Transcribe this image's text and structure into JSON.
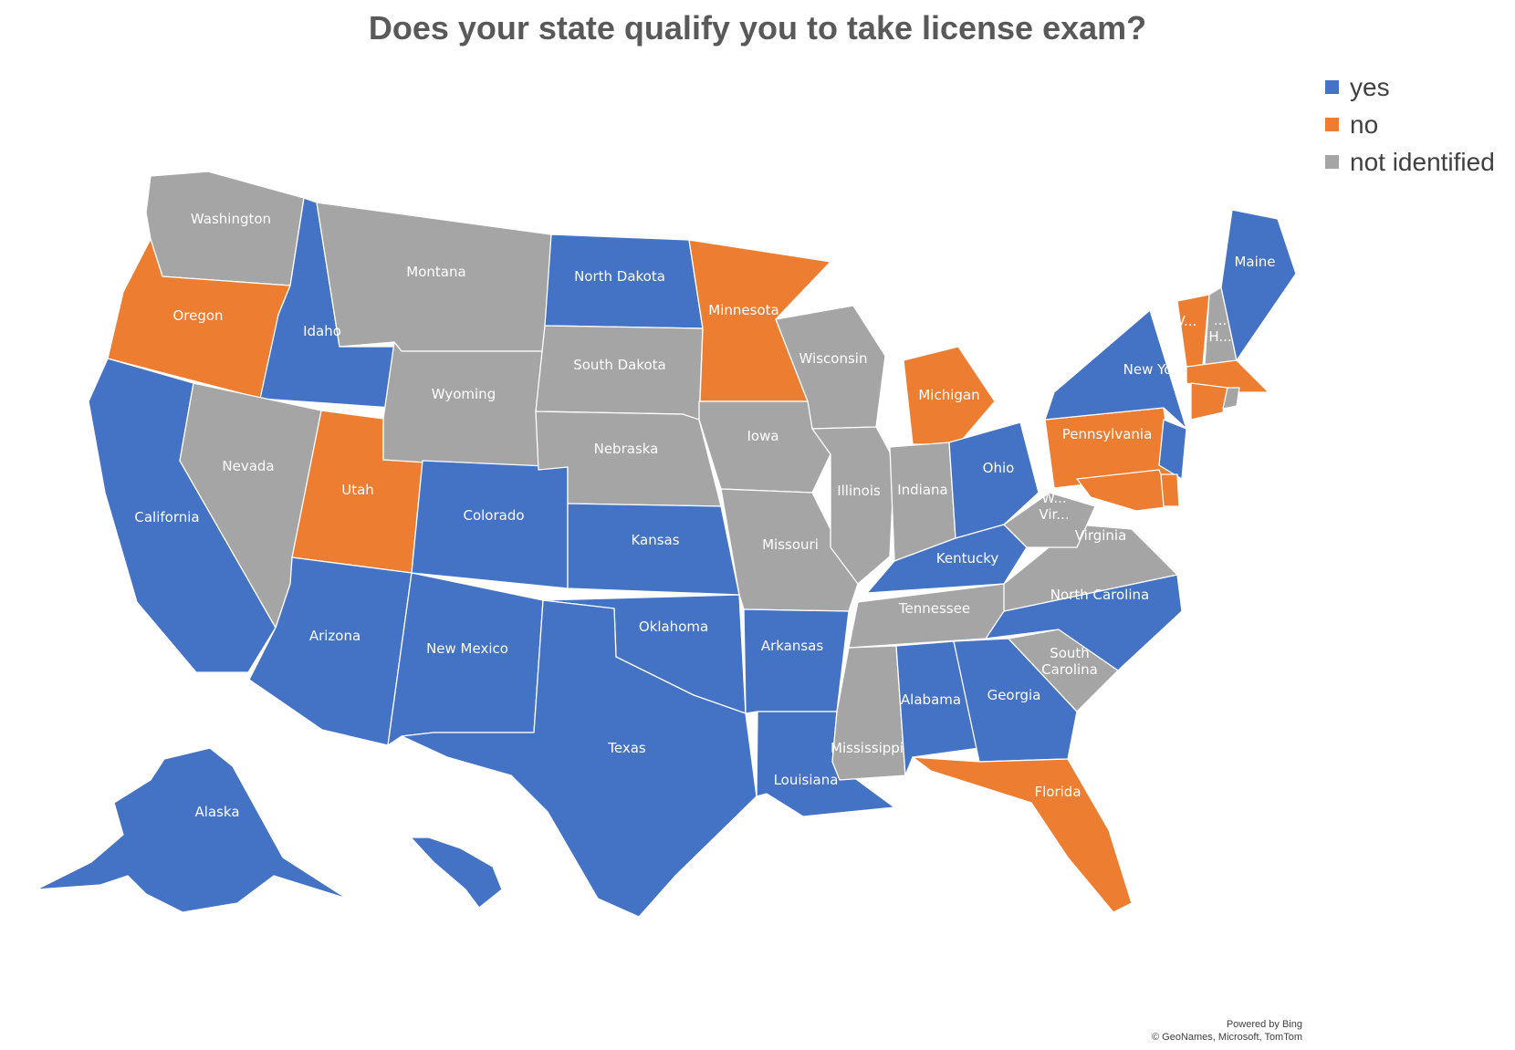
{
  "title": "Does your state qualify you to take license exam?",
  "legend": [
    {
      "label": "yes",
      "color": "#4472C4"
    },
    {
      "label": "no",
      "color": "#ED7D31"
    },
    {
      "label": "not identified",
      "color": "#A5A5A5"
    }
  ],
  "colors": {
    "yes": "#4472C4",
    "no": "#ED7D31",
    "not identified": "#A5A5A5"
  },
  "credit": {
    "line1": "Powered by Bing",
    "line2": "© GeoNames, Microsoft, TomTom"
  },
  "chart_data": {
    "type": "choropleth",
    "region": "United States",
    "title": "Does your state qualify you to take license exam?",
    "categories": [
      "yes",
      "no",
      "not identified"
    ],
    "legend_position": "top-right",
    "states": [
      {
        "name": "Washington",
        "label": "Washington",
        "category": "not identified"
      },
      {
        "name": "Oregon",
        "label": "Oregon",
        "category": "no"
      },
      {
        "name": "California",
        "label": "California",
        "category": "yes"
      },
      {
        "name": "Idaho",
        "label": "Idaho",
        "category": "yes"
      },
      {
        "name": "Nevada",
        "label": "Nevada",
        "category": "not identified"
      },
      {
        "name": "Utah",
        "label": "Utah",
        "category": "no"
      },
      {
        "name": "Arizona",
        "label": "Arizona",
        "category": "yes"
      },
      {
        "name": "Montana",
        "label": "Montana",
        "category": "not identified"
      },
      {
        "name": "Wyoming",
        "label": "Wyoming",
        "category": "not identified"
      },
      {
        "name": "Colorado",
        "label": "Colorado",
        "category": "yes"
      },
      {
        "name": "New Mexico",
        "label": "New Mexico",
        "category": "yes"
      },
      {
        "name": "North Dakota",
        "label": "North Dakota",
        "category": "yes"
      },
      {
        "name": "South Dakota",
        "label": "South Dakota",
        "category": "not identified"
      },
      {
        "name": "Nebraska",
        "label": "Nebraska",
        "category": "not identified"
      },
      {
        "name": "Kansas",
        "label": "Kansas",
        "category": "yes"
      },
      {
        "name": "Oklahoma",
        "label": "Oklahoma",
        "category": "yes"
      },
      {
        "name": "Texas",
        "label": "Texas",
        "category": "yes"
      },
      {
        "name": "Minnesota",
        "label": "Minnesota",
        "category": "no"
      },
      {
        "name": "Iowa",
        "label": "Iowa",
        "category": "not identified"
      },
      {
        "name": "Missouri",
        "label": "Missouri",
        "category": "not identified"
      },
      {
        "name": "Arkansas",
        "label": "Arkansas",
        "category": "yes"
      },
      {
        "name": "Louisiana",
        "label": "Louisiana",
        "category": "yes"
      },
      {
        "name": "Wisconsin",
        "label": "Wisconsin",
        "category": "not identified"
      },
      {
        "name": "Illinois",
        "label": "Illinois",
        "category": "not identified"
      },
      {
        "name": "Michigan",
        "label": "Michigan",
        "category": "no"
      },
      {
        "name": "Indiana",
        "label": "Indiana",
        "category": "not identified"
      },
      {
        "name": "Ohio",
        "label": "Ohio",
        "category": "yes"
      },
      {
        "name": "Kentucky",
        "label": "Kentucky",
        "category": "yes"
      },
      {
        "name": "Tennessee",
        "label": "Tennessee",
        "category": "not identified"
      },
      {
        "name": "Mississippi",
        "label": "Mississippi",
        "category": "not identified"
      },
      {
        "name": "Alabama",
        "label": "Alabama",
        "category": "yes"
      },
      {
        "name": "Georgia",
        "label": "Georgia",
        "category": "yes"
      },
      {
        "name": "Florida",
        "label": "Florida",
        "category": "no"
      },
      {
        "name": "South Carolina",
        "label": "South Carolina",
        "category": "not identified"
      },
      {
        "name": "North Carolina",
        "label": "North Carolina",
        "category": "yes"
      },
      {
        "name": "Virginia",
        "label": "Virginia",
        "category": "not identified"
      },
      {
        "name": "West Virginia",
        "label": "W... Vir...",
        "category": "not identified"
      },
      {
        "name": "Pennsylvania",
        "label": "Pennsylvania",
        "category": "no"
      },
      {
        "name": "New York",
        "label": "New York",
        "category": "yes"
      },
      {
        "name": "New Jersey",
        "label": "",
        "category": "yes"
      },
      {
        "name": "Maryland",
        "label": "",
        "category": "no"
      },
      {
        "name": "Delaware",
        "label": "",
        "category": "no"
      },
      {
        "name": "Vermont",
        "label": "V...",
        "category": "no"
      },
      {
        "name": "New Hampshire",
        "label": "... H...",
        "category": "not identified"
      },
      {
        "name": "Maine",
        "label": "Maine",
        "category": "yes"
      },
      {
        "name": "Massachusetts",
        "label": "",
        "category": "no"
      },
      {
        "name": "Connecticut",
        "label": "",
        "category": "no"
      },
      {
        "name": "Rhode Island",
        "label": "",
        "category": "not identified"
      },
      {
        "name": "Alaska",
        "label": "Alaska",
        "category": "yes"
      },
      {
        "name": "Hawaii",
        "label": "",
        "category": "yes"
      }
    ]
  }
}
